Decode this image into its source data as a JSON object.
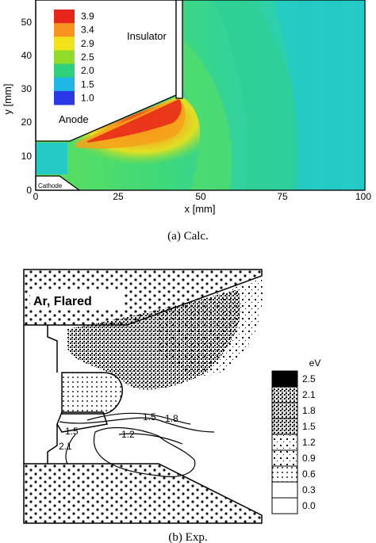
{
  "panel_a": {
    "caption": "(a) Calc.",
    "x_label": "x [mm]",
    "y_label": "y [mm]",
    "x_ticks": [
      "0",
      "25",
      "50",
      "75",
      "100"
    ],
    "y_ticks": [
      "0",
      "10",
      "20",
      "30",
      "40",
      "50"
    ],
    "legend_values": [
      "3.9",
      "3.4",
      "2.9",
      "2.5",
      "2.0",
      "1.5",
      "1.0"
    ],
    "legend_colors": [
      "#e8251b",
      "#f7931e",
      "#f2e21a",
      "#8fdc2b",
      "#2fd07a",
      "#1fb7e6",
      "#2a39e8"
    ],
    "labels": {
      "insulator": "Insulator",
      "anode": "Anode",
      "cathode": "Cathode"
    }
  },
  "panel_b": {
    "caption": "(b) Exp.",
    "region_label": "Ar, Flared",
    "legend_unit": "eV",
    "legend_values": [
      "2.5",
      "2.1",
      "1.8",
      "1.5",
      "1.2",
      "0.9",
      "0.6",
      "0.3",
      "0.0"
    ],
    "contour_labels": [
      "1.5",
      "1.5",
      "1.8",
      "1.2",
      "2.1"
    ]
  },
  "chart_data": [
    {
      "type": "heatmap",
      "xlabel": "x [mm]",
      "ylabel": "y [mm]",
      "xlim": [
        0,
        100
      ],
      "ylim": [
        0,
        56
      ],
      "colorbar": {
        "values": [
          3.9,
          3.4,
          2.9,
          2.5,
          2.0,
          1.5,
          1.0
        ]
      }
    },
    {
      "type": "heatmap",
      "colorbar": {
        "unit": "eV",
        "values": [
          2.5,
          2.1,
          1.8,
          1.5,
          1.2,
          0.9,
          0.6,
          0.3,
          0.0
        ]
      }
    }
  ]
}
